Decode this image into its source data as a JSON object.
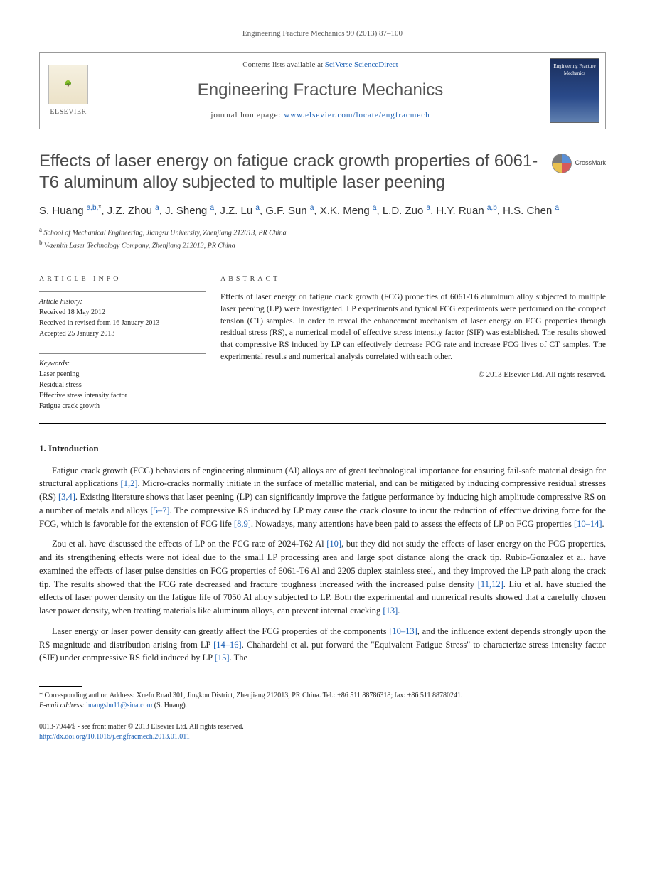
{
  "journal_ref": "Engineering Fracture Mechanics 99 (2013) 87–100",
  "header": {
    "elsevier": "ELSEVIER",
    "contents_prefix": "Contents lists available at ",
    "contents_link": "SciVerse ScienceDirect",
    "journal_name": "Engineering Fracture Mechanics",
    "homepage_prefix": "journal homepage: ",
    "homepage_link": "www.elsevier.com/locate/engfracmech",
    "cover_title": "Engineering Fracture Mechanics"
  },
  "crossmark": "CrossMark",
  "title": "Effects of laser energy on fatigue crack growth properties of 6061-T6 aluminum alloy subjected to multiple laser peening",
  "authors_html": "S. Huang <sup>a,b,</sup><sup class=\"star\">*</sup>, J.Z. Zhou <sup>a</sup>, J. Sheng <sup>a</sup>, J.Z. Lu <sup>a</sup>, G.F. Sun <sup>a</sup>, X.K. Meng <sup>a</sup>, L.D. Zuo <sup>a</sup>, H.Y. Ruan <sup>a,b</sup>, H.S. Chen <sup>a</sup>",
  "affiliations": {
    "a": "School of Mechanical Engineering, Jiangsu University, Zhenjiang 212013, PR China",
    "b": "V-zenith Laser Technology Company, Zhenjiang 212013, PR China"
  },
  "info": {
    "heading": "ARTICLE INFO",
    "history_label": "Article history:",
    "received": "Received 18 May 2012",
    "revised": "Received in revised form 16 January 2013",
    "accepted": "Accepted 25 January 2013",
    "keywords_label": "Keywords:",
    "keywords": [
      "Laser peening",
      "Residual stress",
      "Effective stress intensity factor",
      "Fatigue crack growth"
    ]
  },
  "abstract": {
    "heading": "ABSTRACT",
    "text": "Effects of laser energy on fatigue crack growth (FCG) properties of 6061-T6 aluminum alloy subjected to multiple laser peening (LP) were investigated. LP experiments and typical FCG experiments were performed on the compact tension (CT) samples. In order to reveal the enhancement mechanism of laser energy on FCG properties through residual stress (RS), a numerical model of effective stress intensity factor (SIF) was established. The results showed that compressive RS induced by LP can effectively decrease FCG rate and increase FCG lives of CT samples. The experimental results and numerical analysis correlated with each other.",
    "copyright": "© 2013 Elsevier Ltd. All rights reserved."
  },
  "section1": {
    "heading": "1. Introduction",
    "p1": "Fatigue crack growth (FCG) behaviors of engineering aluminum (Al) alloys are of great technological importance for ensuring fail-safe material design for structural applications [1,2]. Micro-cracks normally initiate in the surface of metallic material, and can be mitigated by inducing compressive residual stresses (RS) [3,4]. Existing literature shows that laser peening (LP) can significantly improve the fatigue performance by inducing high amplitude compressive RS on a number of metals and alloys [5–7]. The compressive RS induced by LP may cause the crack closure to incur the reduction of effective driving force for the FCG, which is favorable for the extension of FCG life [8,9]. Nowadays, many attentions have been paid to assess the effects of LP on FCG properties [10–14].",
    "p2": "Zou et al. have discussed the effects of LP on the FCG rate of 2024-T62 Al [10], but they did not study the effects of laser energy on the FCG properties, and its strengthening effects were not ideal due to the small LP processing area and large spot distance along the crack tip. Rubio-Gonzalez et al. have examined the effects of laser pulse densities on FCG properties of 6061-T6 Al and 2205 duplex stainless steel, and they improved the LP path along the crack tip. The results showed that the FCG rate decreased and fracture toughness increased with the increased pulse density [11,12]. Liu et al. have studied the effects of laser power density on the fatigue life of 7050 Al alloy subjected to LP. Both the experimental and numerical results showed that a carefully chosen laser power density, when treating materials like aluminum alloys, can prevent internal cracking [13].",
    "p3": "Laser energy or laser power density can greatly affect the FCG properties of the components [10–13], and the influence extent depends strongly upon the RS magnitude and distribution arising from LP [14–16]. Chahardehi et al. put forward the \"Equivalent Fatigue Stress\" to characterize stress intensity factor (SIF) under compressive RS field induced by LP [15]. The"
  },
  "footnote": {
    "corresponding": "* Corresponding author. Address: Xuefu Road 301, Jingkou District, Zhenjiang 212013, PR China. Tel.: +86 511 88786318; fax: +86 511 88780241.",
    "email_label": "E-mail address: ",
    "email": "huangshu11@sina.com",
    "email_suffix": " (S. Huang)."
  },
  "footer": {
    "issn": "0013-7944/$ - see front matter © 2013 Elsevier Ltd. All rights reserved.",
    "doi": "http://dx.doi.org/10.1016/j.engfracmech.2013.01.011"
  },
  "refs": {
    "r12": "[1,2]",
    "r34": "[3,4]",
    "r57": "[5–7]",
    "r89": "[8,9]",
    "r1014": "[10–14]",
    "r10": "[10]",
    "r1112": "[11,12]",
    "r13": "[13]",
    "r1013": "[10–13]",
    "r1416": "[14–16]",
    "r15": "[15]"
  }
}
